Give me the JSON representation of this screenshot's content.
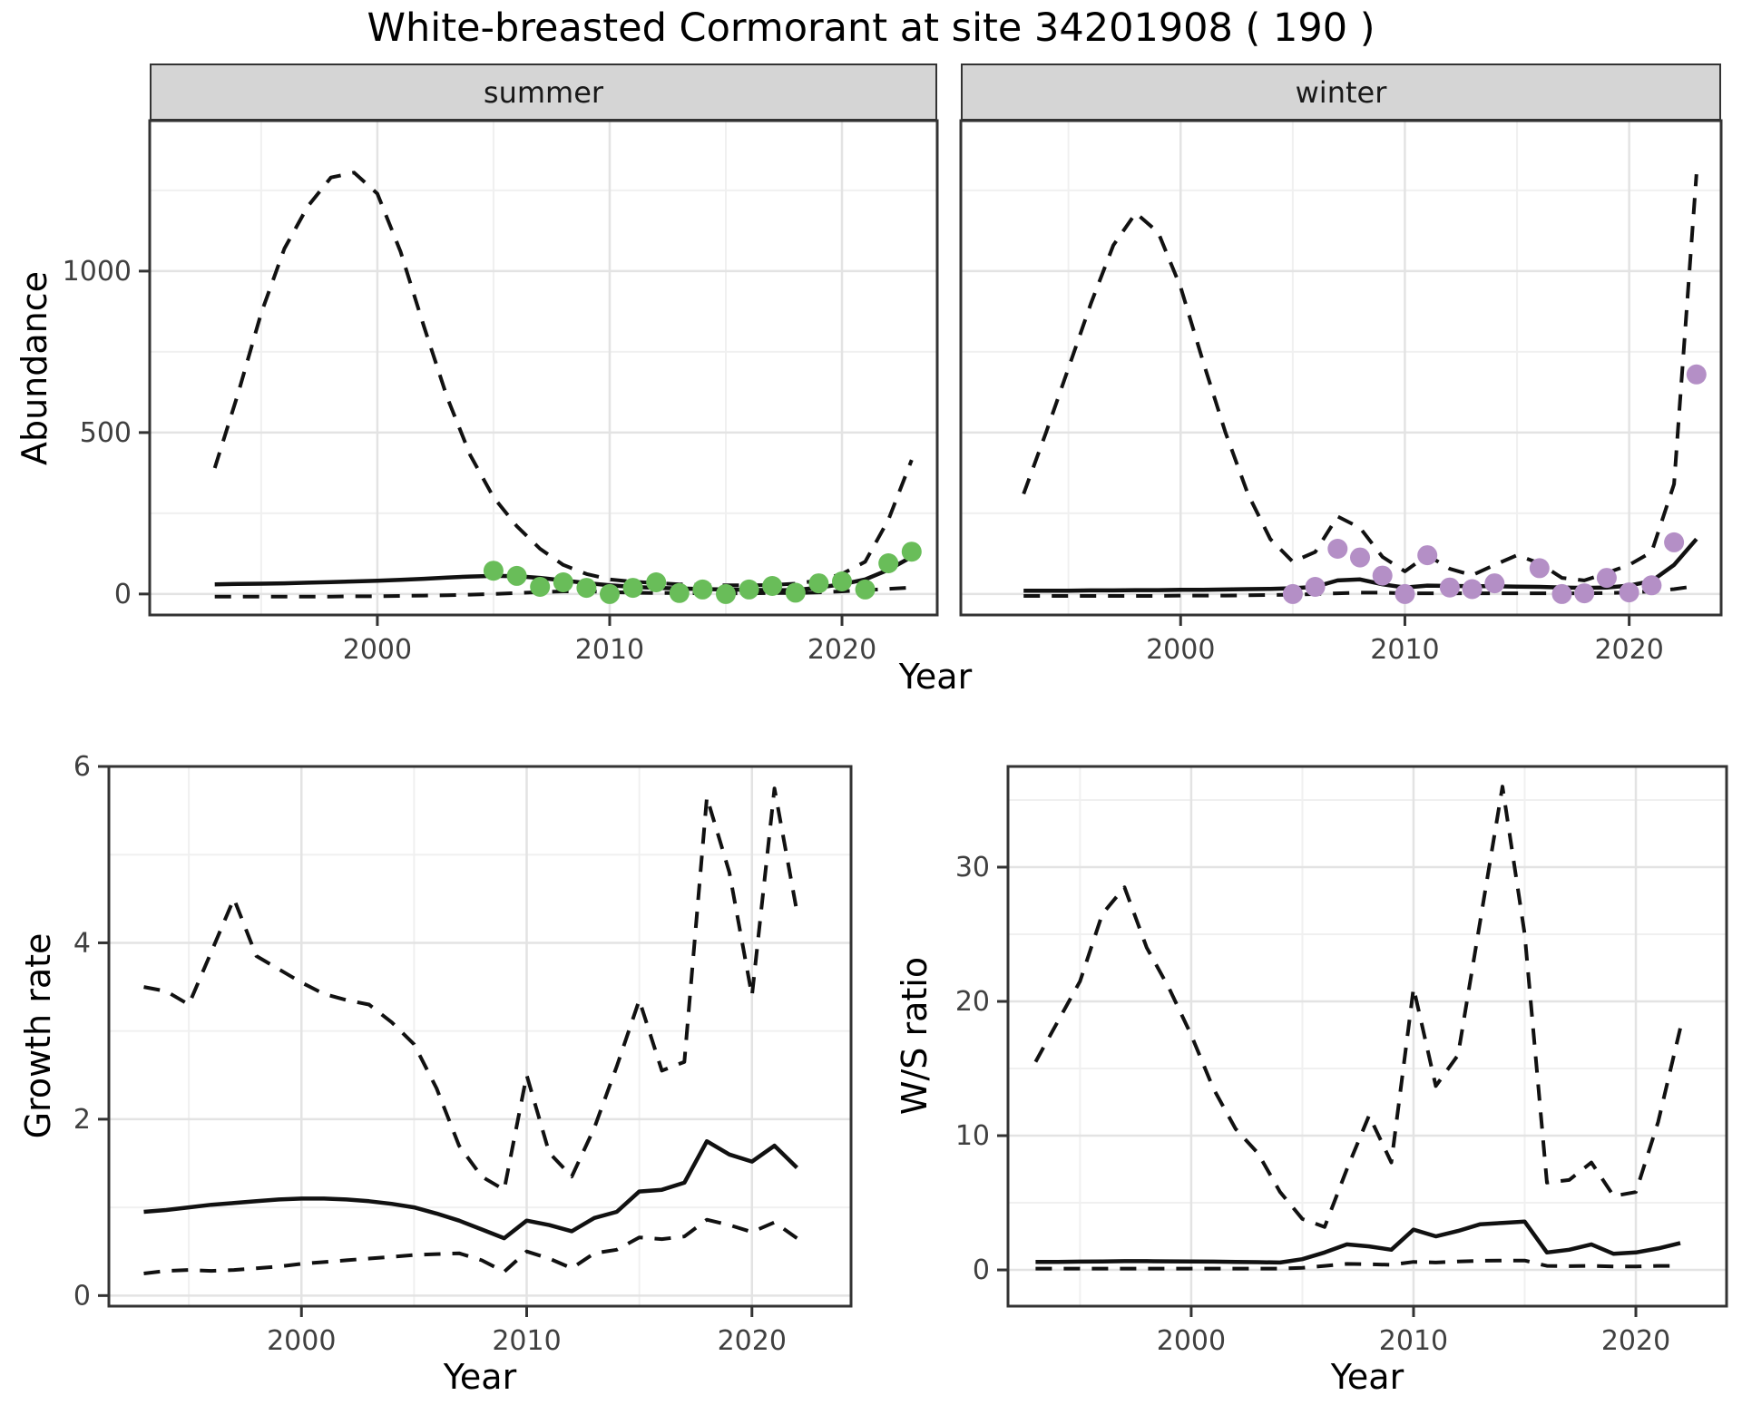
{
  "title": "White-breasted Cormorant at site 34201908 ( 190 )",
  "colors": {
    "summer_points": "#69BD59",
    "winter_points": "#B48FC6",
    "line": "#111111",
    "grid_major": "#E3E3E3",
    "grid_minor": "#F0F0F0",
    "panel_border": "#333333",
    "strip_bg": "#D5D5D5",
    "tick_text": "#404040"
  },
  "chart_data": [
    {
      "id": "abundance-summer",
      "type": "line",
      "facet_label": "summer",
      "xlabel": "Year",
      "ylabel": "Abundance",
      "x": [
        1993,
        1994,
        1995,
        1996,
        1997,
        1998,
        1999,
        2000,
        2001,
        2002,
        2003,
        2004,
        2005,
        2006,
        2007,
        2008,
        2009,
        2010,
        2011,
        2012,
        2013,
        2014,
        2015,
        2016,
        2017,
        2018,
        2019,
        2020,
        2021,
        2022,
        2023
      ],
      "series": [
        {
          "name": "upper-ci",
          "style": "dashed",
          "values": [
            390,
            620,
            870,
            1070,
            1200,
            1290,
            1305,
            1240,
            1060,
            830,
            610,
            430,
            300,
            210,
            140,
            90,
            62,
            45,
            38,
            34,
            30,
            28,
            27,
            27,
            28,
            32,
            42,
            62,
            100,
            230,
            415
          ]
        },
        {
          "name": "mean",
          "style": "solid",
          "values": [
            30,
            31,
            32,
            33,
            35,
            37,
            39,
            41,
            44,
            47,
            51,
            54,
            56,
            55,
            50,
            42,
            34,
            27,
            22,
            19,
            17,
            15,
            14,
            13,
            12,
            12,
            20,
            30,
            45,
            75,
            115
          ]
        },
        {
          "name": "lower-ci",
          "style": "dashed",
          "values": [
            -8,
            -8,
            -8,
            -8,
            -8,
            -8,
            -7,
            -7,
            -6,
            -5,
            -4,
            -2,
            0,
            3,
            6,
            8,
            8,
            6,
            4,
            3,
            3,
            2,
            2,
            2,
            3,
            3,
            5,
            8,
            12,
            16,
            20
          ]
        }
      ],
      "points": {
        "name": "summer-observations",
        "color_key": "summer_points",
        "x": [
          2005,
          2006,
          2007,
          2008,
          2009,
          2010,
          2011,
          2012,
          2013,
          2014,
          2015,
          2016,
          2017,
          2018,
          2019,
          2020,
          2021,
          2022,
          2023
        ],
        "y": [
          72,
          56,
          22,
          36,
          19,
          0,
          19,
          36,
          3,
          14,
          0,
          14,
          25,
          4,
          33,
          39,
          14,
          95,
          131
        ]
      },
      "xlim": [
        1990.2,
        2024.1
      ],
      "ylim": [
        -65,
        1466
      ],
      "xticks": [
        2000,
        2010,
        2020
      ],
      "yticks": [
        0,
        500,
        1000
      ],
      "xticks_minor": [
        1995,
        2005,
        2015
      ],
      "yticks_minor": [
        250,
        750,
        1250
      ],
      "show_ytick_labels": true
    },
    {
      "id": "abundance-winter",
      "type": "line",
      "facet_label": "winter",
      "xlabel": "Year",
      "ylabel": "Abundance",
      "x": [
        1993,
        1994,
        1995,
        1996,
        1997,
        1998,
        1999,
        2000,
        2001,
        2002,
        2003,
        2004,
        2005,
        2006,
        2007,
        2008,
        2009,
        2010,
        2011,
        2012,
        2013,
        2014,
        2015,
        2016,
        2017,
        2018,
        2019,
        2020,
        2021,
        2022,
        2023
      ],
      "series": [
        {
          "name": "upper-ci",
          "style": "dashed",
          "values": [
            310,
            500,
            700,
            900,
            1080,
            1180,
            1120,
            950,
            720,
            500,
            310,
            170,
            100,
            130,
            240,
            205,
            115,
            70,
            120,
            78,
            58,
            90,
            120,
            95,
            50,
            42,
            65,
            90,
            130,
            340,
            1300
          ]
        },
        {
          "name": "mean",
          "style": "solid",
          "values": [
            10,
            10,
            10,
            11,
            11,
            12,
            12,
            13,
            13,
            14,
            15,
            16,
            18,
            22,
            42,
            45,
            30,
            20,
            26,
            25,
            24,
            24,
            23,
            22,
            20,
            19,
            20,
            26,
            40,
            90,
            170
          ]
        },
        {
          "name": "lower-ci",
          "style": "dashed",
          "values": [
            -6,
            -6,
            -6,
            -6,
            -6,
            -6,
            -6,
            -5,
            -5,
            -5,
            -4,
            -3,
            -2,
            0,
            2,
            4,
            4,
            2,
            2,
            2,
            2,
            2,
            2,
            2,
            2,
            2,
            3,
            5,
            8,
            15,
            25
          ]
        }
      ],
      "points": {
        "name": "winter-observations",
        "color_key": "winter_points",
        "x": [
          2005,
          2006,
          2007,
          2008,
          2009,
          2010,
          2011,
          2012,
          2013,
          2014,
          2016,
          2017,
          2018,
          2019,
          2020,
          2021,
          2022,
          2023
        ],
        "y": [
          0,
          22,
          140,
          113,
          57,
          0,
          120,
          20,
          15,
          33,
          80,
          0,
          2,
          50,
          5,
          27,
          160,
          680
        ]
      },
      "xlim": [
        1990.2,
        2024.1
      ],
      "ylim": [
        -65,
        1466
      ],
      "xticks": [
        2000,
        2010,
        2020
      ],
      "yticks": [
        0,
        500,
        1000
      ],
      "xticks_minor": [
        1995,
        2005,
        2015
      ],
      "yticks_minor": [
        250,
        750,
        1250
      ],
      "show_ytick_labels": false
    },
    {
      "id": "growth-rate",
      "type": "line",
      "facet_label": "",
      "xlabel": "Year",
      "ylabel": "Growth rate",
      "x": [
        1993,
        1994,
        1995,
        1996,
        1997,
        1998,
        1999,
        2000,
        2001,
        2002,
        2003,
        2004,
        2005,
        2006,
        2007,
        2008,
        2009,
        2010,
        2011,
        2012,
        2013,
        2014,
        2015,
        2016,
        2017,
        2018,
        2019,
        2020,
        2021,
        2022
      ],
      "series": [
        {
          "name": "upper-ci",
          "style": "dashed",
          "values": [
            3.5,
            3.45,
            3.3,
            3.9,
            4.5,
            3.85,
            3.7,
            3.55,
            3.42,
            3.35,
            3.3,
            3.1,
            2.85,
            2.35,
            1.7,
            1.35,
            1.2,
            2.5,
            1.62,
            1.35,
            1.9,
            2.6,
            3.35,
            2.55,
            2.65,
            5.65,
            4.8,
            3.4,
            5.75,
            4.35
          ]
        },
        {
          "name": "mean",
          "style": "solid",
          "values": [
            0.95,
            0.97,
            1.0,
            1.03,
            1.05,
            1.07,
            1.09,
            1.1,
            1.1,
            1.09,
            1.07,
            1.04,
            1.0,
            0.93,
            0.85,
            0.75,
            0.65,
            0.85,
            0.8,
            0.73,
            0.88,
            0.95,
            1.18,
            1.2,
            1.28,
            1.75,
            1.6,
            1.52,
            1.7,
            1.45
          ]
        },
        {
          "name": "lower-ci",
          "style": "dashed",
          "values": [
            0.25,
            0.28,
            0.29,
            0.28,
            0.29,
            0.31,
            0.33,
            0.36,
            0.38,
            0.4,
            0.42,
            0.44,
            0.46,
            0.47,
            0.48,
            0.4,
            0.27,
            0.5,
            0.42,
            0.31,
            0.48,
            0.52,
            0.66,
            0.64,
            0.67,
            0.86,
            0.8,
            0.72,
            0.83,
            0.65
          ]
        }
      ],
      "xlim": [
        1991.45,
        2024.4
      ],
      "ylim": [
        -0.12,
        6.0
      ],
      "xticks": [
        2000,
        2010,
        2020
      ],
      "yticks": [
        0,
        2,
        4,
        6
      ],
      "xticks_minor": [
        1995,
        2005,
        2015
      ],
      "yticks_minor": [
        1,
        3,
        5
      ],
      "show_ytick_labels": true
    },
    {
      "id": "ws-ratio",
      "type": "line",
      "facet_label": "",
      "xlabel": "Year",
      "ylabel": "W/S ratio",
      "x": [
        1993,
        1994,
        1995,
        1996,
        1997,
        1998,
        1999,
        2000,
        2001,
        2002,
        2003,
        2004,
        2005,
        2006,
        2007,
        2008,
        2009,
        2010,
        2011,
        2012,
        2013,
        2014,
        2015,
        2016,
        2017,
        2018,
        2019,
        2020,
        2021,
        2022
      ],
      "series": [
        {
          "name": "upper-ci",
          "style": "dashed",
          "values": [
            15.5,
            18.5,
            21.5,
            26.5,
            28.5,
            24,
            21,
            17.5,
            13.5,
            10.5,
            8.7,
            5.8,
            3.8,
            3.2,
            7.5,
            11.5,
            8,
            21,
            13.7,
            16,
            26,
            36,
            25,
            6.5,
            6.7,
            8,
            5.5,
            5.8,
            11,
            18
          ]
        },
        {
          "name": "mean",
          "style": "solid",
          "values": [
            0.6,
            0.6,
            0.62,
            0.63,
            0.65,
            0.65,
            0.64,
            0.63,
            0.62,
            0.6,
            0.58,
            0.55,
            0.8,
            1.3,
            1.9,
            1.75,
            1.5,
            3.0,
            2.5,
            2.9,
            3.4,
            3.5,
            3.6,
            1.3,
            1.5,
            1.9,
            1.2,
            1.3,
            1.6,
            2.0
          ]
        },
        {
          "name": "lower-ci",
          "style": "dashed",
          "values": [
            0.1,
            0.1,
            0.1,
            0.1,
            0.1,
            0.1,
            0.1,
            0.1,
            0.1,
            0.1,
            0.1,
            0.1,
            0.15,
            0.3,
            0.45,
            0.42,
            0.38,
            0.6,
            0.55,
            0.63,
            0.68,
            0.7,
            0.7,
            0.3,
            0.28,
            0.3,
            0.25,
            0.25,
            0.3,
            0.3
          ]
        }
      ],
      "xlim": [
        1991.76,
        2024.08
      ],
      "ylim": [
        -2.7,
        37.5
      ],
      "xticks": [
        2000,
        2010,
        2020
      ],
      "yticks": [
        0,
        10,
        20,
        30
      ],
      "xticks_minor": [
        1995,
        2005,
        2015
      ],
      "yticks_minor": [
        5,
        15,
        25,
        35
      ],
      "show_ytick_labels": true
    }
  ]
}
